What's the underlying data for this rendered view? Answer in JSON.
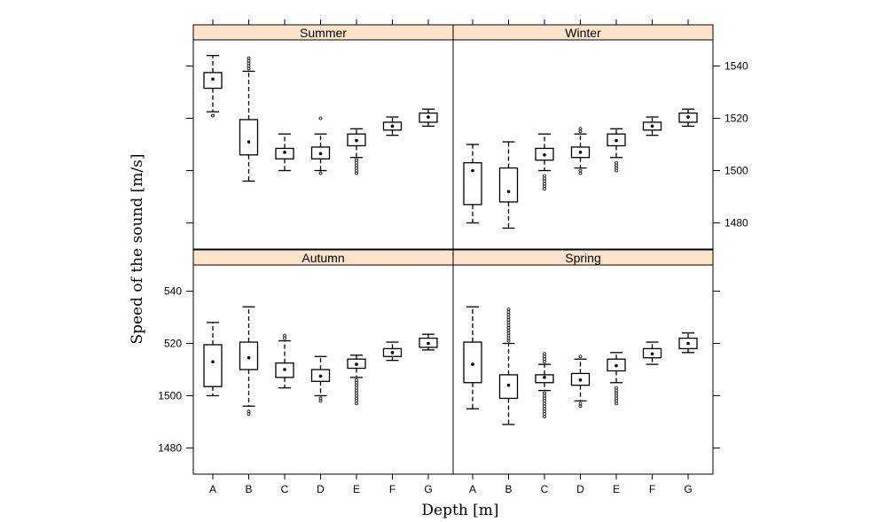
{
  "chart_data": {
    "type": "box",
    "xlabel": "Depth [m]",
    "ylabel": "Speed of the sound [m/s]",
    "categories": [
      "A",
      "B",
      "C",
      "D",
      "E",
      "F",
      "G"
    ],
    "ylim": [
      1470,
      1550
    ],
    "left_ticks": [
      "540",
      "520",
      "1500",
      "1480"
    ],
    "right_ticks": [
      "1540",
      "1520",
      "1500",
      "1480"
    ],
    "strip_color": "#FFE4CC",
    "panels": [
      {
        "title": "Summer",
        "boxes": [
          {
            "category": "A",
            "whisker_low": 1522.5,
            "q1": 1531.5,
            "median": 1535,
            "q3": 1537.5,
            "whisker_high": 1544,
            "outliers": [
              1521
            ]
          },
          {
            "category": "B",
            "whisker_low": 1496,
            "q1": 1506,
            "median": 1511,
            "q3": 1519.5,
            "whisker_high": 1538,
            "outliers": [
              1539,
              1540,
              1541,
              1542,
              1543
            ]
          },
          {
            "category": "C",
            "whisker_low": 1500,
            "q1": 1504.5,
            "median": 1507,
            "q3": 1508.5,
            "whisker_high": 1514,
            "outliers": []
          },
          {
            "category": "D",
            "whisker_low": 1500,
            "q1": 1504.5,
            "median": 1506.5,
            "q3": 1509,
            "whisker_high": 1514,
            "outliers": [
              1499,
              1520
            ]
          },
          {
            "category": "E",
            "whisker_low": 1505,
            "q1": 1509.5,
            "median": 1511.5,
            "q3": 1514,
            "whisker_high": 1516,
            "outliers": [
              1499,
              1500,
              1501,
              1502,
              1503,
              1504
            ]
          },
          {
            "category": "F",
            "whisker_low": 1513.5,
            "q1": 1515.5,
            "median": 1517,
            "q3": 1518.5,
            "whisker_high": 1520.5,
            "outliers": []
          },
          {
            "category": "G",
            "whisker_low": 1517,
            "q1": 1518.5,
            "median": 1520.5,
            "q3": 1522,
            "whisker_high": 1523.5,
            "outliers": []
          }
        ]
      },
      {
        "title": "Winter",
        "boxes": [
          {
            "category": "A",
            "whisker_low": 1480,
            "q1": 1487,
            "median": 1500,
            "q3": 1503,
            "whisker_high": 1510,
            "outliers": []
          },
          {
            "category": "B",
            "whisker_low": 1478,
            "q1": 1488,
            "median": 1492,
            "q3": 1501,
            "whisker_high": 1511,
            "outliers": []
          },
          {
            "category": "C",
            "whisker_low": 1500,
            "q1": 1504,
            "median": 1506,
            "q3": 1508.5,
            "whisker_high": 1514,
            "outliers": [
              1493,
              1494,
              1495,
              1496,
              1497,
              1498
            ]
          },
          {
            "category": "D",
            "whisker_low": 1501,
            "q1": 1505,
            "median": 1507,
            "q3": 1509,
            "whisker_high": 1514,
            "outliers": [
              1499,
              1500,
              1515,
              1516
            ]
          },
          {
            "category": "E",
            "whisker_low": 1505,
            "q1": 1509.5,
            "median": 1511.5,
            "q3": 1514,
            "whisker_high": 1516,
            "outliers": [
              1500,
              1501,
              1502,
              1503
            ]
          },
          {
            "category": "F",
            "whisker_low": 1513.5,
            "q1": 1515.5,
            "median": 1517,
            "q3": 1518.5,
            "whisker_high": 1520.5,
            "outliers": []
          },
          {
            "category": "G",
            "whisker_low": 1517,
            "q1": 1518.5,
            "median": 1520.5,
            "q3": 1522,
            "whisker_high": 1523.5,
            "outliers": []
          }
        ]
      },
      {
        "title": "Autumn",
        "boxes": [
          {
            "category": "A",
            "whisker_low": 1500,
            "q1": 1503.5,
            "median": 1513,
            "q3": 1519.5,
            "whisker_high": 1528,
            "outliers": []
          },
          {
            "category": "B",
            "whisker_low": 1496,
            "q1": 1510,
            "median": 1514.5,
            "q3": 1520.5,
            "whisker_high": 1534,
            "outliers": [
              1493,
              1494
            ]
          },
          {
            "category": "C",
            "whisker_low": 1503,
            "q1": 1507,
            "median": 1510,
            "q3": 1512.5,
            "whisker_high": 1521,
            "outliers": [
              1522,
              1523
            ]
          },
          {
            "category": "D",
            "whisker_low": 1500,
            "q1": 1505.5,
            "median": 1507.5,
            "q3": 1510,
            "whisker_high": 1515,
            "outliers": [
              1498,
              1499
            ]
          },
          {
            "category": "E",
            "whisker_low": 1507,
            "q1": 1510.5,
            "median": 1512,
            "q3": 1514,
            "whisker_high": 1515.5,
            "outliers": [
              1497,
              1498,
              1499,
              1500,
              1501,
              1502,
              1503,
              1504,
              1505,
              1506
            ]
          },
          {
            "category": "F",
            "whisker_low": 1513.5,
            "q1": 1515,
            "median": 1516.5,
            "q3": 1518,
            "whisker_high": 1520.5,
            "outliers": []
          },
          {
            "category": "G",
            "whisker_low": 1517.5,
            "q1": 1518.5,
            "median": 1520,
            "q3": 1522,
            "whisker_high": 1523.5,
            "outliers": []
          }
        ]
      },
      {
        "title": "Spring",
        "boxes": [
          {
            "category": "A",
            "whisker_low": 1495,
            "q1": 1505,
            "median": 1512,
            "q3": 1520.5,
            "whisker_high": 1534,
            "outliers": []
          },
          {
            "category": "B",
            "whisker_low": 1489,
            "q1": 1499,
            "median": 1504,
            "q3": 1508,
            "whisker_high": 1520,
            "outliers": [
              1521,
              1522,
              1523,
              1524,
              1525,
              1526,
              1527,
              1528,
              1529,
              1530,
              1531,
              1532,
              1533
            ]
          },
          {
            "category": "C",
            "whisker_low": 1502,
            "q1": 1505,
            "median": 1507,
            "q3": 1508,
            "whisker_high": 1512,
            "outliers": [
              1492,
              1493,
              1494,
              1495,
              1496,
              1497,
              1498,
              1499,
              1500,
              1501,
              1513,
              1514,
              1515,
              1516
            ]
          },
          {
            "category": "D",
            "whisker_low": 1498,
            "q1": 1504,
            "median": 1506,
            "q3": 1508.5,
            "whisker_high": 1514,
            "outliers": [
              1496,
              1497,
              1515
            ]
          },
          {
            "category": "E",
            "whisker_low": 1505,
            "q1": 1509.5,
            "median": 1511.5,
            "q3": 1514,
            "whisker_high": 1516.5,
            "outliers": [
              1497,
              1498,
              1499,
              1500,
              1501,
              1502,
              1503
            ]
          },
          {
            "category": "F",
            "whisker_low": 1512,
            "q1": 1514.5,
            "median": 1516,
            "q3": 1518,
            "whisker_high": 1520.5,
            "outliers": []
          },
          {
            "category": "G",
            "whisker_low": 1516.5,
            "q1": 1518,
            "median": 1520,
            "q3": 1522,
            "whisker_high": 1524,
            "outliers": []
          }
        ]
      }
    ]
  }
}
